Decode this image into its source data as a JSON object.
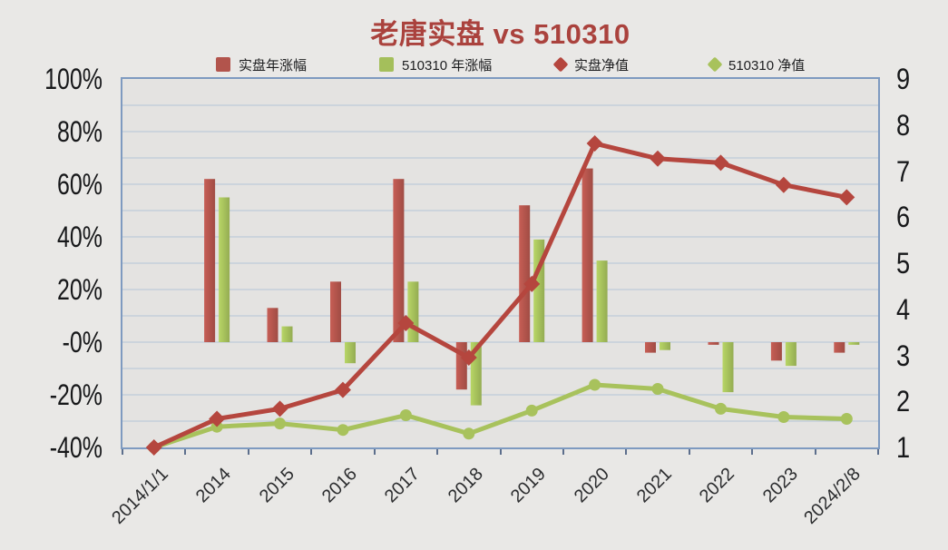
{
  "title": "老唐实盘 vs 510310",
  "legend": {
    "items": [
      {
        "label": "实盘年涨幅",
        "marker": "square",
        "color": "#b2544c"
      },
      {
        "label": "510310 年涨幅",
        "marker": "square",
        "color": "#a4bf5b"
      },
      {
        "label": "实盘净值",
        "marker": "diamond",
        "color": "#b5463e"
      },
      {
        "label": "510310 净值",
        "marker": "diamond",
        "color": "#a8c25c"
      }
    ]
  },
  "chart_data": {
    "type": "combo",
    "subtype": "bar+line, dual axis",
    "categories": [
      "2014/1/1",
      "2014",
      "2015",
      "2016",
      "2017",
      "2018",
      "2019",
      "2020",
      "2021",
      "2022",
      "2023",
      "2024/2/8"
    ],
    "left_axis": {
      "tick_labels": [
        "100%",
        "80%",
        "60%",
        "40%",
        "20%",
        "-0%",
        "-20%",
        "-40%"
      ],
      "min": -40,
      "max": 100,
      "unit": "%",
      "gridline_step": 10
    },
    "right_axis": {
      "tick_labels": [
        "9",
        "8",
        "7",
        "6",
        "5",
        "4",
        "3",
        "2",
        "1"
      ],
      "min": 1,
      "max": 9
    },
    "grid": true,
    "legend_position": "top",
    "series": [
      {
        "key": "shipan-yearly",
        "name": "实盘年涨幅",
        "type": "bar",
        "axis": "left",
        "color": "#b2544c",
        "values": [
          null,
          62,
          13,
          23,
          62,
          -18,
          52,
          66,
          -4,
          -1,
          -7,
          -4
        ]
      },
      {
        "key": "etf-yearly",
        "name": "510310 年涨幅",
        "type": "bar",
        "axis": "left",
        "color": "#a4bf5b",
        "values": [
          null,
          55,
          6,
          -8,
          23,
          -24,
          39,
          31,
          -3,
          -19,
          -9,
          -1
        ]
      },
      {
        "key": "shipan-nav",
        "name": "实盘净值",
        "type": "line",
        "marker": "diamond",
        "axis": "right",
        "color": "#b5463e",
        "values": [
          1.0,
          1.62,
          1.84,
          2.25,
          3.7,
          2.95,
          4.55,
          7.6,
          7.27,
          7.18,
          6.7,
          6.43
        ]
      },
      {
        "key": "etf-nav",
        "name": "510310 净值",
        "type": "line",
        "marker": "circle",
        "axis": "right",
        "color": "#a8c25c",
        "values": [
          1.0,
          1.45,
          1.52,
          1.38,
          1.7,
          1.3,
          1.8,
          2.36,
          2.27,
          1.84,
          1.66,
          1.62
        ]
      }
    ]
  },
  "colors": {
    "title": "#aa423d",
    "page_bg": "#e9e8e6",
    "plot_bg": "#e4e3e1",
    "gridline": "#a9bdd6",
    "plot_border": "#7e9ac0",
    "axis_text": "#17181a"
  }
}
